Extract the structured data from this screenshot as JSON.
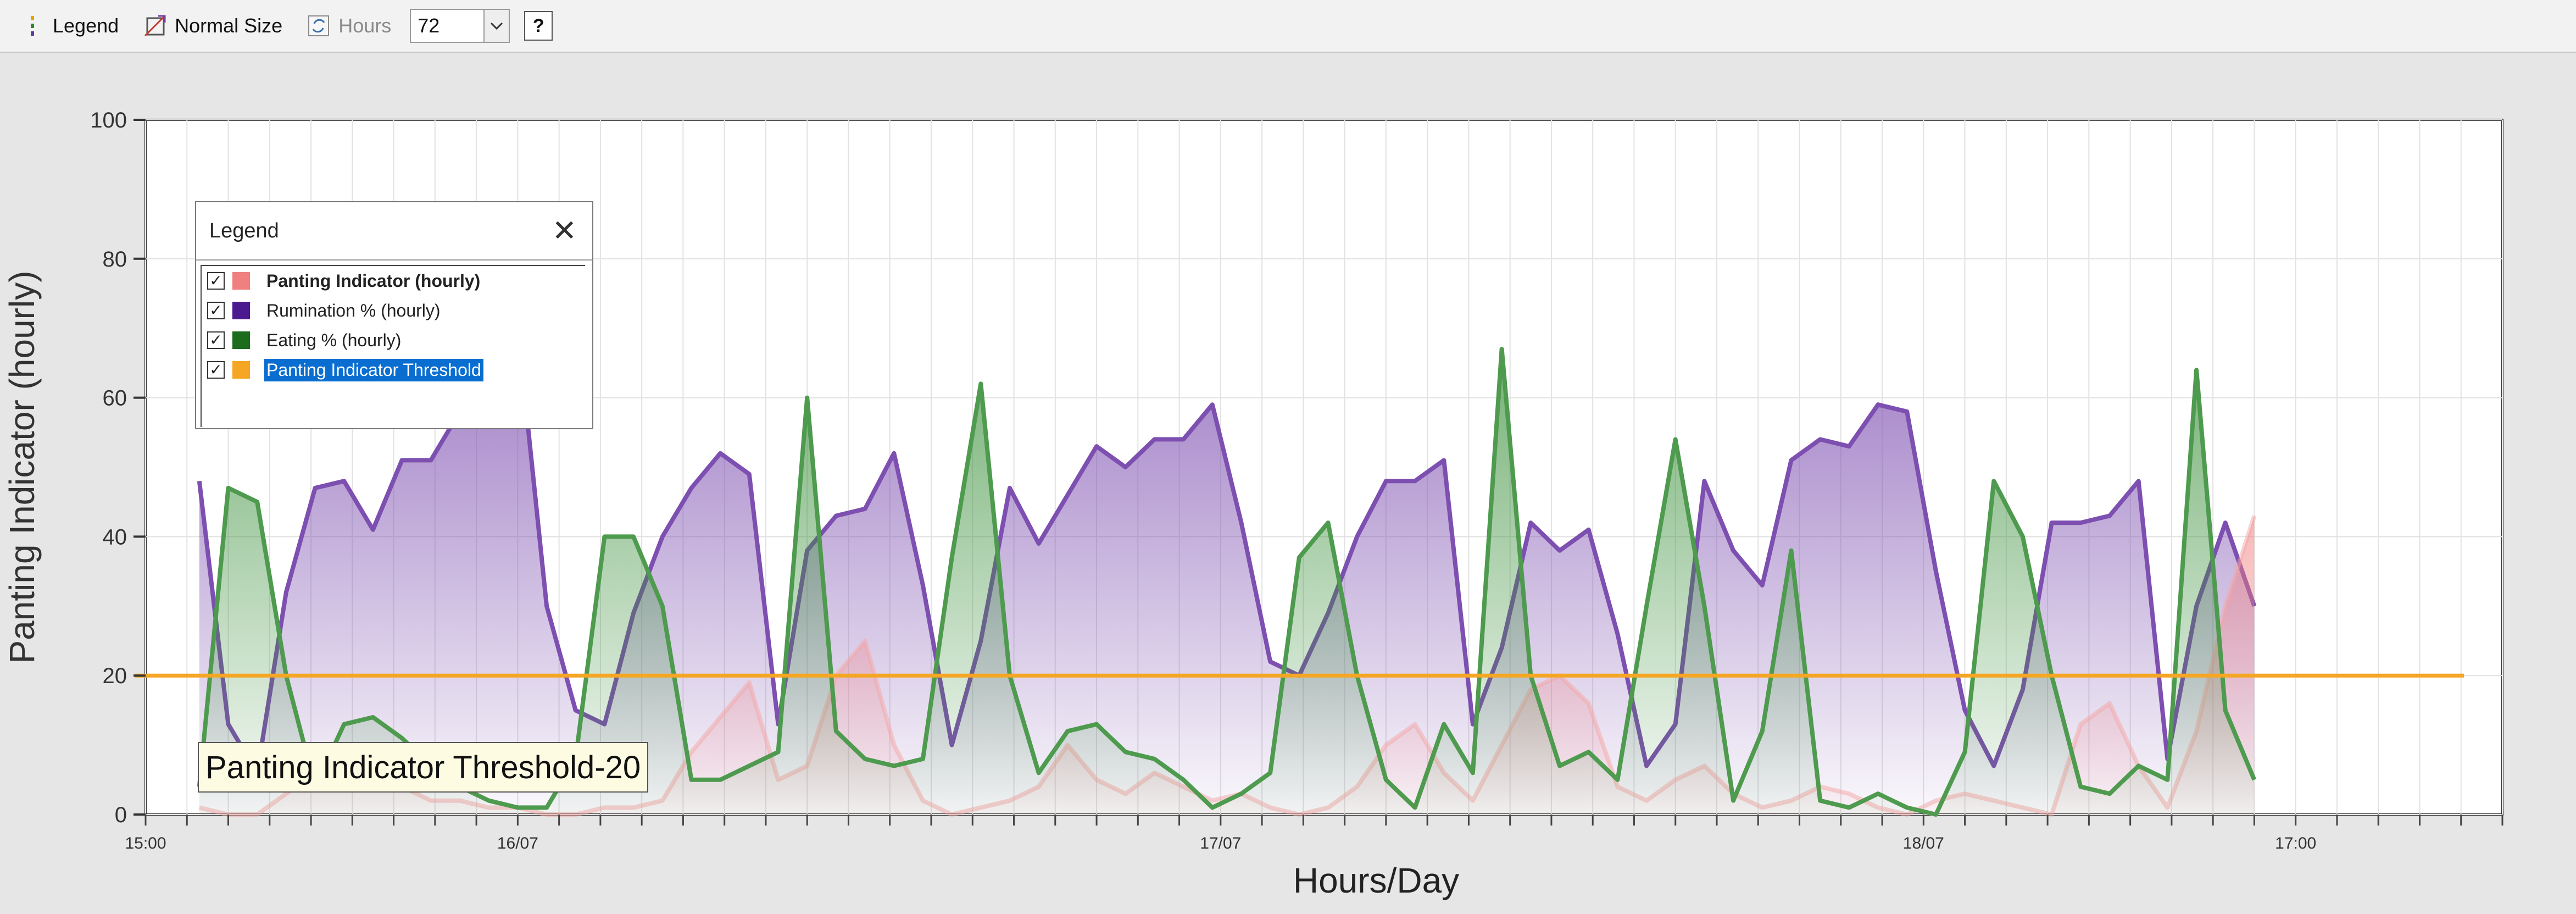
{
  "toolbar": {
    "legend_label": "Legend",
    "normal_size_label": "Normal Size",
    "hours_label": "Hours",
    "hours_value": "72",
    "help_label": "?",
    "icons": [
      "legend-icon",
      "normal-size-icon",
      "refresh-icon",
      "chevron-down-icon",
      "help-icon"
    ]
  },
  "legend": {
    "title": "Legend",
    "close_label": "✕",
    "items": [
      {
        "label": "Panting Indicator (hourly)",
        "color": "#f07f7f",
        "checked": true
      },
      {
        "label": "Rumination % (hourly)",
        "color": "#4b1a8f",
        "checked": true
      },
      {
        "label": "Eating % (hourly)",
        "color": "#1d6b1d",
        "checked": true
      },
      {
        "label": "Panting Indicator Threshold",
        "color": "#f5a623",
        "checked": true
      }
    ]
  },
  "threshold_callout": "Panting Indicator Threshold-20",
  "chart_data": {
    "type": "area",
    "xlabel": "Hours/Day",
    "ylabel": "Panting Indicator (hourly)",
    "ylim": [
      0,
      100
    ],
    "yticks": [
      0,
      20,
      40,
      60,
      80,
      100
    ],
    "xlim": [
      0,
      57
    ],
    "xticks": [
      {
        "x": 0,
        "label": "15:00"
      },
      {
        "x": 9,
        "label": "16/07"
      },
      {
        "x": 26,
        "label": "17/07"
      },
      {
        "x": 43,
        "label": "18/07"
      },
      {
        "x": 52,
        "label": "17:00"
      }
    ],
    "grid": true,
    "x_start": 1.3,
    "x_step": 0.7,
    "threshold": 20,
    "series": [
      {
        "name": "Rumination % (hourly)",
        "color": "#7d4fb0",
        "values": [
          48,
          13,
          6,
          32,
          47,
          48,
          41,
          51,
          51,
          58,
          63,
          70,
          30,
          15,
          13,
          29,
          40,
          47,
          52,
          49,
          13,
          38,
          43,
          44,
          52,
          33,
          10,
          25,
          47,
          39,
          46,
          53,
          50,
          54,
          54,
          59,
          42,
          22,
          20,
          29,
          40,
          48,
          48,
          51,
          13,
          24,
          42,
          38,
          41,
          26,
          7,
          13,
          48,
          38,
          33,
          51,
          54,
          53,
          59,
          58,
          35,
          15,
          7,
          18,
          42,
          42,
          43,
          48,
          8,
          30,
          42,
          30
        ]
      },
      {
        "name": "Eating % (hourly)",
        "color": "#4e9a4e",
        "values": [
          4,
          47,
          45,
          20,
          4,
          13,
          14,
          11,
          7,
          4,
          2,
          1,
          1,
          8,
          40,
          40,
          30,
          5,
          5,
          7,
          9,
          60,
          12,
          8,
          7,
          8,
          37,
          62,
          20,
          6,
          12,
          13,
          9,
          8,
          5,
          1,
          3,
          6,
          37,
          42,
          20,
          5,
          1,
          13,
          6,
          67,
          20,
          7,
          9,
          5,
          30,
          54,
          30,
          2,
          12,
          38,
          2,
          1,
          3,
          1,
          0,
          9,
          48,
          40,
          20,
          4,
          3,
          7,
          5,
          64,
          15,
          5
        ]
      },
      {
        "name": "Panting Indicator (hourly)",
        "color": "#f4a6a6",
        "values": [
          1,
          0,
          0,
          3,
          6,
          5,
          4,
          4,
          2,
          2,
          1,
          1,
          0,
          0,
          1,
          1,
          2,
          9,
          14,
          19,
          5,
          7,
          20,
          25,
          10,
          2,
          0,
          1,
          2,
          4,
          10,
          5,
          3,
          6,
          4,
          2,
          3,
          1,
          0,
          1,
          4,
          10,
          13,
          6,
          2,
          10,
          18,
          20,
          16,
          4,
          2,
          5,
          7,
          3,
          1,
          2,
          4,
          3,
          1,
          0,
          2,
          3,
          2,
          1,
          0,
          13,
          16,
          7,
          1,
          12,
          30,
          43
        ]
      },
      {
        "name": "Panting Indicator Threshold",
        "color": "#f5a623",
        "values": [
          20
        ]
      }
    ]
  }
}
